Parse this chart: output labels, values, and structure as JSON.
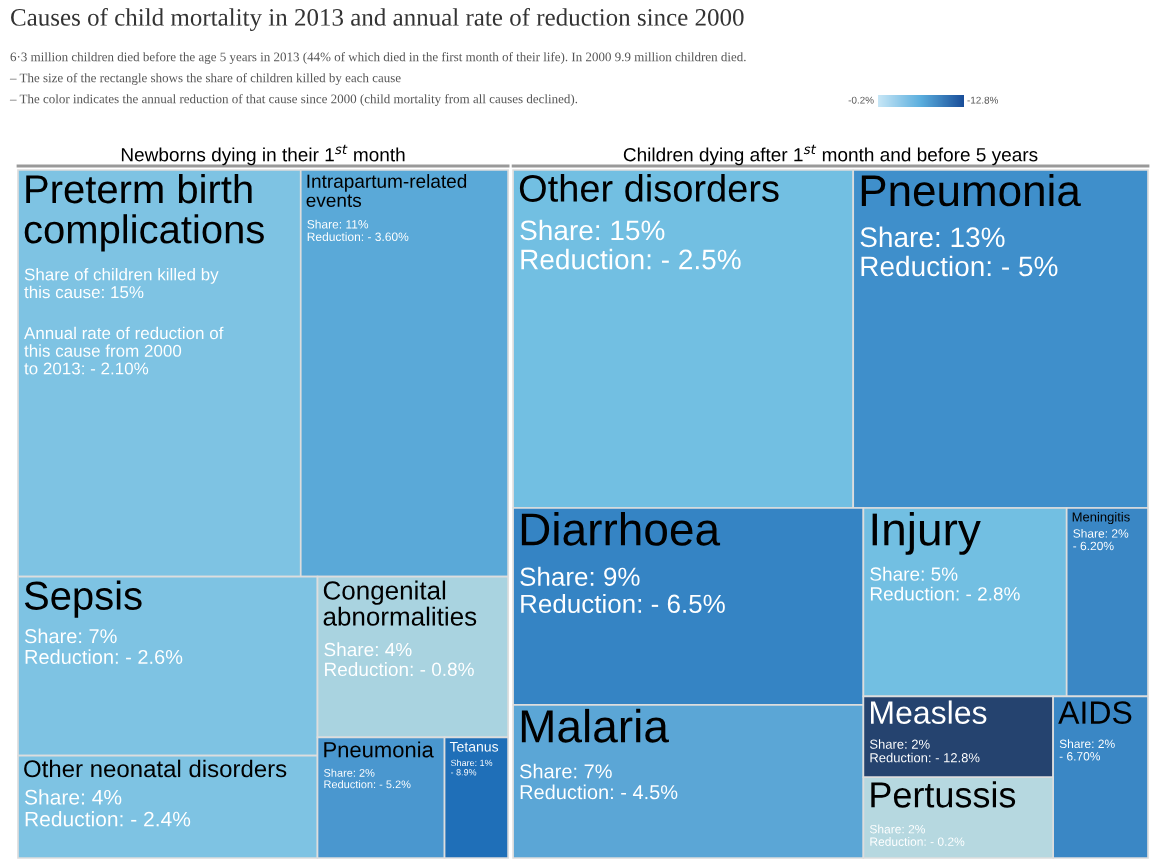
{
  "chart_data": {
    "type": "other",
    "title": "Causes of child mortality in 2013 and annual rate of reduction since 2000",
    "subtitle": "6·3 million children died before the age 5 years in 2013 (44% of which died in the first month of their life). In 2000 9.9 million children died.",
    "annotations": [
      "– The size of the rectangle shows the share of children killed by each cause",
      "– The color indicates the annual reduction of that cause since 2000 (child mortality from all causes declined).",
      "Newborns dying in their 1$^{st}$ month",
      "Children dying after 1$^{st}$ month and before 5 years",
      "-0.2%",
      "-12.8%",
      "Annual rate of reduction of\nthis cause from 2000\nto 2013: - 2.10%"
    ],
    "values": [
      15,
      11,
      7,
      4,
      4,
      2,
      1,
      15,
      13,
      9,
      7,
      5,
      2,
      2,
      2,
      2
    ],
    "categories": [
      "Preterm birth\ncomplications",
      "Intrapartum-related\nevents",
      "Sepsis",
      "Congenital\nabnormalities",
      "Other neonatal disorders",
      "Pneumonia",
      "Tetanus",
      "Other disorders",
      "Pneumonia",
      "Diarrhoea",
      "Malaria",
      "Injury",
      "Meningitis",
      "Measles",
      "AIDS",
      "Pertussis"
    ],
    "value_labels": [
      "Share of children killed by\nthis cause: 15%",
      "Share: 11%\nReduction: - 3.60%",
      "Share: 7%\nReduction: - 2.6%",
      "Share: 4%\nReduction: - 0.8%",
      "Share: 4%\nReduction: - 2.4%",
      "Share: 2%\nReduction: - 5.2%",
      "Share: 1%\n- 8.9%",
      "Share: 15%\nReduction: - 2.5%",
      "Share: 13%\nReduction: - 5%",
      "Share: 9%\nReduction: - 6.5%",
      "Share: 7%\nReduction: - 4.5%",
      "Share: 5%\nReduction: - 2.8%",
      "Share: 2%\n- 6.20%",
      "Share: 2%\nReduction: - 12.8%",
      "Share: 2%\n- 6.70%",
      "Share: 2%\nReduction: - 0.2%"
    ],
    "colors": [
      "#7ec3e3",
      "#5aa9d8",
      "#7ec3e3",
      "#a9d3e0",
      "#7ec3e3",
      "#4a97cf",
      "#1f6fb8",
      "#72bfe2",
      "#3f8fcb",
      "#3584c4",
      "#5ba6d6",
      "#72bfe2",
      "#3a87c5",
      "#25436f",
      "#3a87c5",
      "#b6d8e0"
    ]
  }
}
